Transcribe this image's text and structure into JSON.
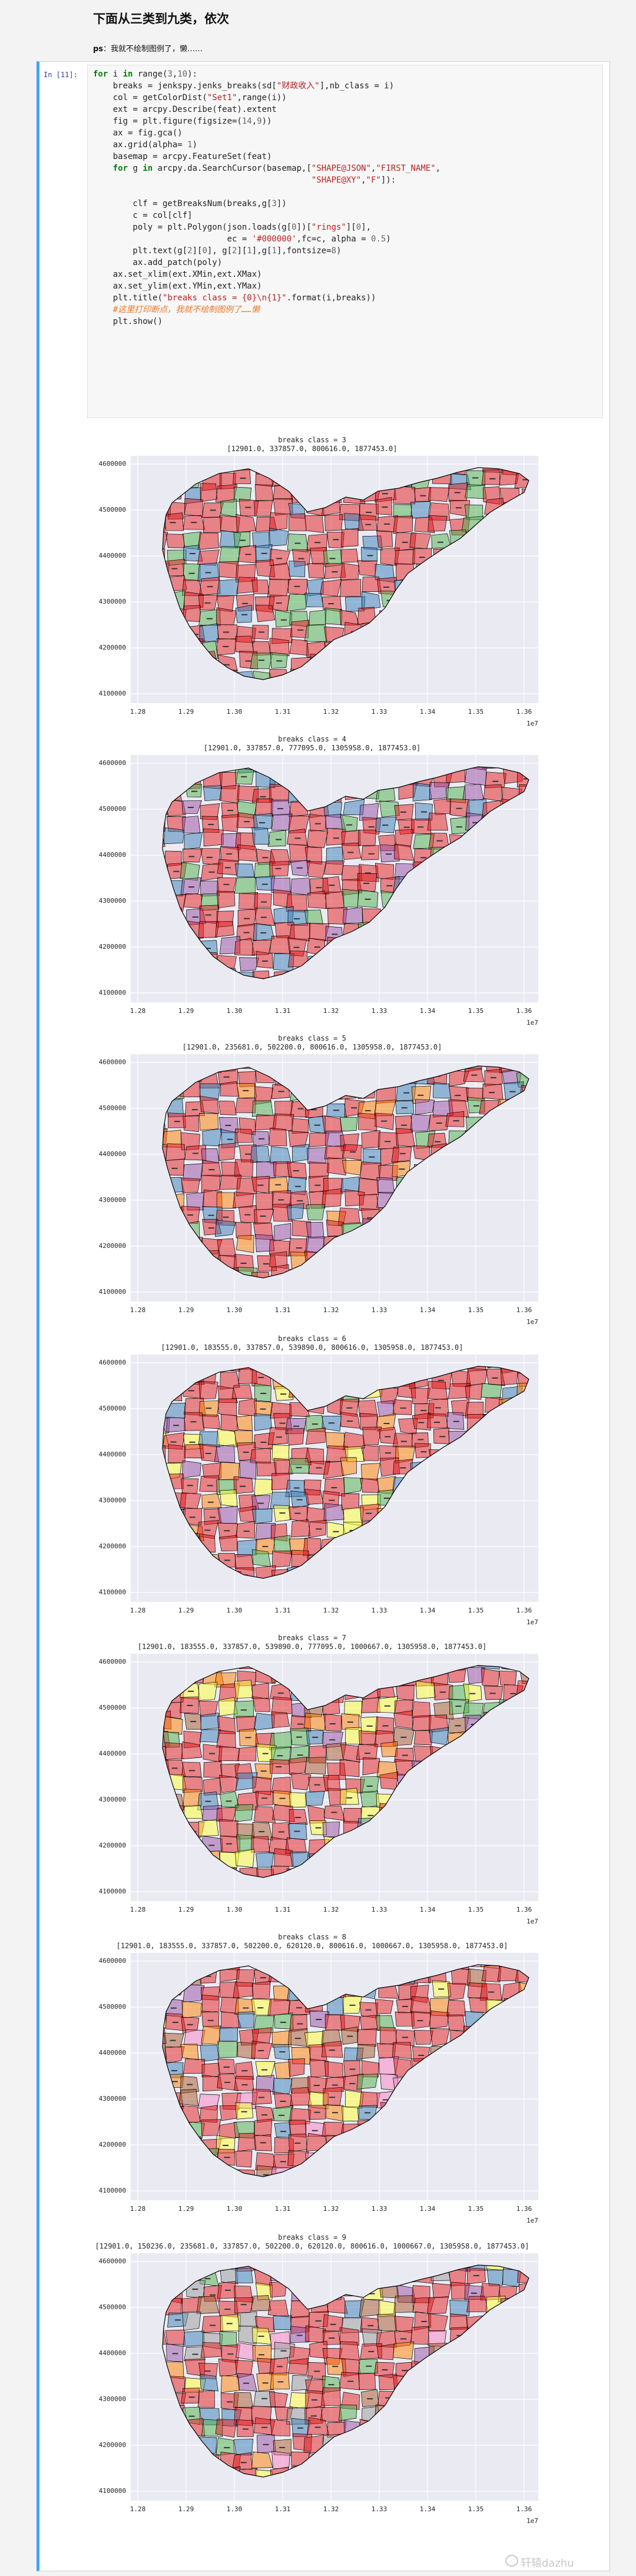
{
  "heading": "下面从三类到九类，依次",
  "ps": {
    "prefix": "ps",
    "text": "：我就不绘制图例了，懒……"
  },
  "cell": {
    "prompt": "In [11]:",
    "code": [
      [
        {
          "t": "for",
          "c": "kw"
        },
        {
          "t": " i "
        },
        {
          "t": "in",
          "c": "kw"
        },
        {
          "t": " range("
        },
        {
          "t": "3",
          "c": "num"
        },
        {
          "t": ","
        },
        {
          "t": "10",
          "c": "num"
        },
        {
          "t": "):"
        }
      ],
      [
        {
          "t": "    breaks = jenkspy.jenks_breaks(sd["
        },
        {
          "t": "\"财政收入\"",
          "c": "str"
        },
        {
          "t": "],nb_class = i)"
        }
      ],
      [
        {
          "t": "    col = getColorDist("
        },
        {
          "t": "\"Set1\"",
          "c": "str"
        },
        {
          "t": ",range(i))"
        }
      ],
      [
        {
          "t": "    ext = arcpy.Describe(feat).extent"
        }
      ],
      [
        {
          "t": "    fig = plt.figure(figsize=("
        },
        {
          "t": "14",
          "c": "num"
        },
        {
          "t": ","
        },
        {
          "t": "9",
          "c": "num"
        },
        {
          "t": "))"
        }
      ],
      [
        {
          "t": "    ax = fig.gca()"
        }
      ],
      [
        {
          "t": "    ax.grid(alpha= "
        },
        {
          "t": "1",
          "c": "num"
        },
        {
          "t": ")"
        }
      ],
      [
        {
          "t": "    basemap = arcpy.FeatureSet(feat)"
        }
      ],
      [
        {
          "t": "    "
        },
        {
          "t": "for",
          "c": "kw"
        },
        {
          "t": " g "
        },
        {
          "t": "in",
          "c": "kw"
        },
        {
          "t": " arcpy.da.SearchCursor(basemap,["
        },
        {
          "t": "\"SHAPE@JSON\"",
          "c": "str"
        },
        {
          "t": ","
        },
        {
          "t": "\"FIRST_NAME\"",
          "c": "str"
        },
        {
          "t": ","
        }
      ],
      [
        {
          "t": "                                            "
        },
        {
          "t": "\"SHAPE@XY\"",
          "c": "str"
        },
        {
          "t": ","
        },
        {
          "t": "\"F\"",
          "c": "str"
        },
        {
          "t": "]):"
        }
      ],
      [
        {
          "t": ""
        }
      ],
      [
        {
          "t": "        clf = getBreaksNum(breaks,g["
        },
        {
          "t": "3",
          "c": "num"
        },
        {
          "t": "])"
        }
      ],
      [
        {
          "t": "        c = col[clf]"
        }
      ],
      [
        {
          "t": "        poly = plt.Polygon(json.loads(g["
        },
        {
          "t": "0",
          "c": "num"
        },
        {
          "t": "])["
        },
        {
          "t": "\"rings\"",
          "c": "str"
        },
        {
          "t": "]["
        },
        {
          "t": "0",
          "c": "num"
        },
        {
          "t": "],"
        }
      ],
      [
        {
          "t": "                           ec = "
        },
        {
          "t": "'#000000'",
          "c": "str"
        },
        {
          "t": ",fc=c, alpha = "
        },
        {
          "t": "0.5",
          "c": "num"
        },
        {
          "t": ")"
        }
      ],
      [
        {
          "t": "        plt.text(g["
        },
        {
          "t": "2",
          "c": "num"
        },
        {
          "t": "]["
        },
        {
          "t": "0",
          "c": "num"
        },
        {
          "t": "], g["
        },
        {
          "t": "2",
          "c": "num"
        },
        {
          "t": "]["
        },
        {
          "t": "1",
          "c": "num"
        },
        {
          "t": "],g["
        },
        {
          "t": "1",
          "c": "num"
        },
        {
          "t": "],fontsize="
        },
        {
          "t": "8",
          "c": "num"
        },
        {
          "t": ")"
        }
      ],
      [
        {
          "t": "        ax.add_patch(poly)"
        }
      ],
      [
        {
          "t": "    ax.set_xlim(ext.XMin,ext.XMax)"
        }
      ],
      [
        {
          "t": "    ax.set_ylim(ext.YMin,ext.YMax)"
        }
      ],
      [
        {
          "t": "    plt.title("
        },
        {
          "t": "\"breaks class = {0}\\n{1}\"",
          "c": "str"
        },
        {
          "t": ".format(i,breaks))"
        }
      ],
      [
        {
          "t": "    "
        },
        {
          "t": "#这里打印断点，我就不绘制图例了……懒",
          "c": "cmt"
        }
      ],
      [
        {
          "t": "    plt.show()"
        }
      ]
    ]
  },
  "figures": [
    {
      "title": "breaks class = 3",
      "subtitle": "[12901.0, 337857.0, 800616.0, 1877453.0]",
      "palette": [
        "#e41a1c",
        "#377eb8",
        "#4daf4a"
      ]
    },
    {
      "title": "breaks class = 4",
      "subtitle": "[12901.0, 337857.0, 777095.0, 1305958.0, 1877453.0]",
      "palette": [
        "#e41a1c",
        "#377eb8",
        "#4daf4a",
        "#984ea3"
      ]
    },
    {
      "title": "breaks class = 5",
      "subtitle": "[12901.0, 235681.0, 502200.0, 800616.0, 1305958.0, 1877453.0]",
      "palette": [
        "#e41a1c",
        "#377eb8",
        "#4daf4a",
        "#984ea3",
        "#ff7f00"
      ]
    },
    {
      "title": "breaks class = 6",
      "subtitle": "[12901.0, 183555.0, 337857.0, 539890.0, 800616.0, 1305958.0, 1877453.0]",
      "palette": [
        "#e41a1c",
        "#377eb8",
        "#4daf4a",
        "#984ea3",
        "#ff7f00",
        "#ffff33"
      ]
    },
    {
      "title": "breaks class = 7",
      "subtitle": "[12901.0, 183555.0, 337857.0, 539890.0, 777095.0, 1000667.0, 1305958.0, 1877453.0]",
      "palette": [
        "#e41a1c",
        "#377eb8",
        "#4daf4a",
        "#984ea3",
        "#ff7f00",
        "#ffff33",
        "#a65628"
      ]
    },
    {
      "title": "breaks class = 8",
      "subtitle": "[12901.0, 183555.0, 337857.0, 502200.0, 620120.0, 800616.0, 1000667.0, 1305958.0, 1877453.0]",
      "palette": [
        "#e41a1c",
        "#377eb8",
        "#4daf4a",
        "#984ea3",
        "#ff7f00",
        "#ffff33",
        "#a65628",
        "#f781bf"
      ]
    },
    {
      "title": "breaks class = 9",
      "subtitle": "[12901.0, 150236.0, 235681.0, 337857.0, 502200.0, 620120.0, 800616.0, 1000667.0, 1305958.0, 1877453.0]",
      "palette": [
        "#e41a1c",
        "#377eb8",
        "#4daf4a",
        "#984ea3",
        "#ff7f00",
        "#ffff33",
        "#a65628",
        "#f781bf",
        "#999999"
      ]
    }
  ],
  "axes": {
    "yticks": [
      "4600000",
      "4500000",
      "4400000",
      "4300000",
      "4200000",
      "4100000"
    ],
    "xticks": [
      "1.28",
      "1.29",
      "1.30",
      "1.31",
      "1.32",
      "1.33",
      "1.34",
      "1.35",
      "1.36"
    ],
    "x_offset_label": "1e7"
  },
  "watermark": "轩辕dazhu"
}
